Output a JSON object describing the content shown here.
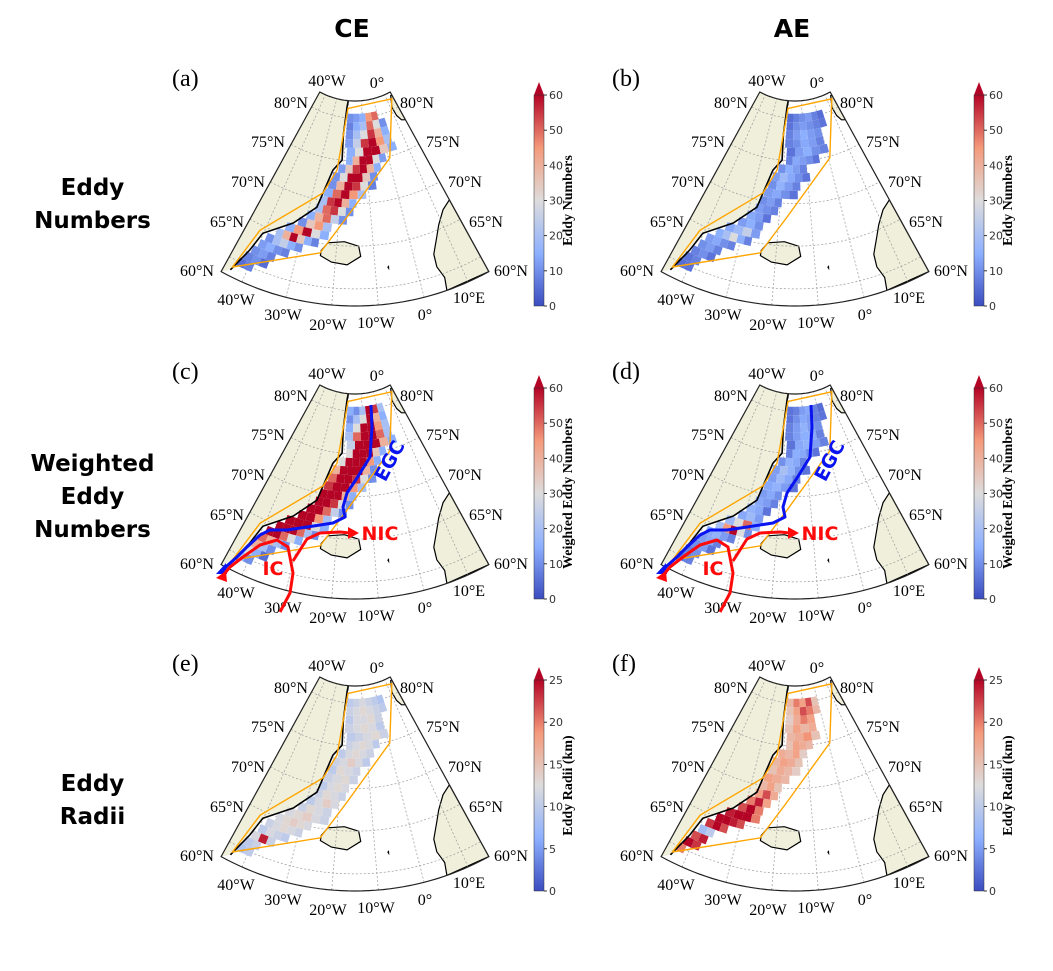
{
  "column_titles": [
    "CE",
    "AE"
  ],
  "row_labels": [
    [
      "Eddy",
      "Numbers"
    ],
    [
      "Weighted",
      "Eddy",
      "Numbers"
    ],
    [
      "Eddy",
      "Radii"
    ]
  ],
  "map": {
    "lon_labels_top": [
      "40°W",
      "0°"
    ],
    "lat_labels": [
      "80°N",
      "75°N",
      "70°N",
      "65°N",
      "60°N"
    ],
    "lon_labels_bottom": [
      "40°W",
      "30°W",
      "20°W",
      "10°W",
      "0°",
      "10°E"
    ],
    "colors": {
      "land": "#efefdc",
      "coast": "#000000",
      "grid": "#9a9a9a",
      "region_box": "#ffa500"
    }
  },
  "colormap": {
    "name": "coolwarm",
    "stops": [
      "#3b4cc0",
      "#8db0fe",
      "#dddcdc",
      "#f49a7b",
      "#b40426"
    ]
  },
  "grid": {
    "lats": [
      80,
      79,
      78,
      77,
      76,
      75,
      74,
      73,
      72,
      71,
      70,
      69,
      68,
      67,
      66,
      65,
      64,
      63,
      62,
      61,
      60
    ],
    "lon_start": [
      -20,
      -20,
      -20,
      -20,
      -19,
      -19,
      -22,
      -24,
      -25,
      -26,
      -27,
      -28,
      -30,
      -32,
      -35,
      -37,
      -39,
      -40,
      -41,
      -42,
      -43
    ],
    "lon_step": [
      4,
      4,
      4,
      4,
      4,
      3,
      3,
      3,
      3,
      3,
      2.5,
      2.5,
      2.5,
      2.5,
      2.5,
      2,
      2,
      2,
      2,
      2,
      2
    ]
  },
  "currents": {
    "labels": {
      "egc": "EGC",
      "nic": "NIC",
      "ic": "IC"
    },
    "colors": {
      "egc": "#0a14f0",
      "nic": "#ff0a0a",
      "ic": "#ff0a0a"
    }
  },
  "chart_data": [
    {
      "panel": "(a)",
      "type": "heatmap",
      "colorbar_label": "Eddy Numbers",
      "range": [
        0,
        60
      ],
      "ticks": [
        0,
        10,
        20,
        30,
        40,
        50,
        60
      ],
      "extend": "max",
      "currents": false,
      "rows": [
        [
          10,
          12,
          15,
          45,
          50,
          null
        ],
        [
          8,
          15,
          20,
          50,
          30,
          10
        ],
        [
          10,
          20,
          30,
          55,
          40,
          15
        ],
        [
          12,
          25,
          55,
          60,
          45,
          20
        ],
        [
          15,
          30,
          60,
          60,
          35,
          15
        ],
        [
          15,
          40,
          60,
          60,
          30,
          12
        ],
        [
          12,
          35,
          55,
          60,
          40,
          15
        ],
        [
          10,
          30,
          60,
          60,
          35,
          10
        ],
        [
          10,
          40,
          60,
          55,
          30,
          8
        ],
        [
          15,
          50,
          60,
          45,
          20,
          null
        ],
        [
          20,
          55,
          60,
          40,
          15,
          null
        ],
        [
          20,
          50,
          55,
          30,
          10,
          null
        ],
        [
          15,
          40,
          50,
          25,
          10,
          null
        ],
        [
          10,
          35,
          45,
          20,
          null,
          null
        ],
        [
          15,
          45,
          60,
          30,
          15,
          null
        ],
        [
          20,
          40,
          60,
          35,
          15,
          8
        ],
        [
          10,
          20,
          25,
          15,
          10,
          null
        ],
        [
          12,
          15,
          10,
          8,
          null,
          null
        ],
        [
          10,
          12,
          8,
          null,
          null,
          null
        ],
        [
          8,
          10,
          5,
          null,
          null,
          null
        ],
        [
          5,
          8,
          null,
          null,
          null,
          null
        ]
      ]
    },
    {
      "panel": "(b)",
      "type": "heatmap",
      "colorbar_label": "Eddy Numbers",
      "range": [
        0,
        60
      ],
      "ticks": [
        0,
        10,
        20,
        30,
        40,
        50,
        60
      ],
      "extend": "max",
      "currents": false,
      "rows": [
        [
          5,
          8,
          10,
          12,
          8,
          5
        ],
        [
          6,
          10,
          12,
          10,
          8,
          6
        ],
        [
          8,
          12,
          15,
          12,
          10,
          null
        ],
        [
          8,
          10,
          14,
          12,
          8,
          null
        ],
        [
          6,
          12,
          15,
          10,
          8,
          null
        ],
        [
          8,
          14,
          12,
          10,
          6,
          null
        ],
        [
          10,
          15,
          12,
          8,
          null,
          null
        ],
        [
          12,
          18,
          14,
          10,
          6,
          null
        ],
        [
          10,
          16,
          12,
          8,
          null,
          null
        ],
        [
          12,
          14,
          10,
          6,
          null,
          null
        ],
        [
          10,
          12,
          8,
          null,
          null,
          null
        ],
        [
          12,
          10,
          8,
          null,
          null,
          null
        ],
        [
          14,
          12,
          6,
          null,
          null,
          null
        ],
        [
          12,
          15,
          10,
          null,
          null,
          null
        ],
        [
          14,
          18,
          25,
          12,
          null,
          null
        ],
        [
          15,
          20,
          30,
          15,
          8,
          null
        ],
        [
          12,
          14,
          10,
          8,
          null,
          null
        ],
        [
          10,
          12,
          8,
          null,
          null,
          null
        ],
        [
          8,
          10,
          6,
          null,
          null,
          null
        ],
        [
          6,
          8,
          null,
          null,
          null,
          null
        ],
        [
          5,
          6,
          null,
          null,
          null,
          null
        ]
      ]
    },
    {
      "panel": "(c)",
      "type": "heatmap",
      "colorbar_label": "Weighted Eddy Numbers",
      "range": [
        0,
        60
      ],
      "ticks": [
        0,
        10,
        20,
        30,
        40,
        50,
        60
      ],
      "extend": "max",
      "currents": true,
      "rows": [
        [
          15,
          10,
          20,
          60,
          55,
          20
        ],
        [
          10,
          20,
          30,
          60,
          40,
          15
        ],
        [
          15,
          30,
          60,
          60,
          45,
          20
        ],
        [
          20,
          50,
          60,
          60,
          50,
          20
        ],
        [
          25,
          60,
          60,
          60,
          40,
          15
        ],
        [
          30,
          60,
          60,
          60,
          35,
          15
        ],
        [
          30,
          60,
          60,
          60,
          45,
          15
        ],
        [
          40,
          60,
          60,
          60,
          40,
          10
        ],
        [
          50,
          60,
          60,
          55,
          30,
          10
        ],
        [
          55,
          60,
          60,
          45,
          20,
          null
        ],
        [
          60,
          60,
          60,
          40,
          15,
          null
        ],
        [
          60,
          60,
          55,
          30,
          10,
          null
        ],
        [
          60,
          60,
          50,
          25,
          10,
          null
        ],
        [
          60,
          60,
          45,
          20,
          null,
          null
        ],
        [
          60,
          60,
          60,
          30,
          15,
          null
        ],
        [
          60,
          60,
          60,
          50,
          20,
          10
        ],
        [
          60,
          60,
          50,
          30,
          15,
          null
        ],
        [
          50,
          40,
          20,
          10,
          null,
          null
        ],
        [
          40,
          20,
          10,
          null,
          null,
          null
        ],
        [
          30,
          15,
          5,
          null,
          null,
          null
        ],
        [
          20,
          10,
          null,
          null,
          null,
          null
        ]
      ]
    },
    {
      "panel": "(d)",
      "type": "heatmap",
      "colorbar_label": "Weighted Eddy Numbers",
      "range": [
        0,
        60
      ],
      "ticks": [
        0,
        10,
        20,
        30,
        40,
        50,
        60
      ],
      "extend": "max",
      "currents": true,
      "rows": [
        [
          6,
          8,
          12,
          14,
          8,
          5
        ],
        [
          6,
          10,
          14,
          12,
          8,
          6
        ],
        [
          8,
          12,
          16,
          12,
          10,
          null
        ],
        [
          8,
          12,
          15,
          14,
          8,
          null
        ],
        [
          6,
          14,
          16,
          12,
          8,
          null
        ],
        [
          8,
          15,
          14,
          10,
          6,
          null
        ],
        [
          10,
          16,
          14,
          8,
          null,
          null
        ],
        [
          12,
          20,
          16,
          10,
          6,
          null
        ],
        [
          12,
          18,
          14,
          8,
          null,
          null
        ],
        [
          14,
          16,
          12,
          6,
          null,
          null
        ],
        [
          12,
          14,
          10,
          null,
          null,
          null
        ],
        [
          14,
          12,
          8,
          null,
          null,
          null
        ],
        [
          16,
          14,
          6,
          null,
          null,
          null
        ],
        [
          14,
          18,
          12,
          null,
          null,
          null
        ],
        [
          18,
          30,
          50,
          15,
          null,
          null
        ],
        [
          20,
          45,
          60,
          30,
          10,
          null
        ],
        [
          14,
          16,
          12,
          8,
          null,
          null
        ],
        [
          12,
          14,
          8,
          null,
          null,
          null
        ],
        [
          10,
          12,
          6,
          null,
          null,
          null
        ],
        [
          8,
          10,
          null,
          null,
          null,
          null
        ],
        [
          6,
          8,
          null,
          null,
          null,
          null
        ]
      ]
    },
    {
      "panel": "(e)",
      "type": "heatmap",
      "colorbar_label": "Eddy Radii (km)",
      "range": [
        0,
        25
      ],
      "ticks": [
        0,
        5,
        10,
        15,
        20,
        25
      ],
      "extend": "max",
      "currents": false,
      "rows": [
        [
          10,
          11,
          12,
          11,
          10,
          9
        ],
        [
          11,
          12,
          13,
          12,
          11,
          10
        ],
        [
          10,
          12,
          12,
          13,
          11,
          null
        ],
        [
          11,
          12,
          13,
          12,
          10,
          null
        ],
        [
          10,
          11,
          12,
          13,
          11,
          null
        ],
        [
          11,
          12,
          13,
          12,
          10,
          null
        ],
        [
          10,
          12,
          13,
          12,
          11,
          null
        ],
        [
          11,
          12,
          14,
          12,
          10,
          null
        ],
        [
          10,
          13,
          12,
          11,
          null,
          null
        ],
        [
          11,
          12,
          13,
          11,
          null,
          null
        ],
        [
          10,
          12,
          13,
          12,
          null,
          null
        ],
        [
          11,
          13,
          12,
          11,
          null,
          null
        ],
        [
          10,
          12,
          14,
          12,
          null,
          null
        ],
        [
          11,
          13,
          12,
          11,
          null,
          null
        ],
        [
          12,
          13,
          14,
          12,
          11,
          null
        ],
        [
          12,
          13,
          14,
          13,
          12,
          null
        ],
        [
          11,
          12,
          13,
          12,
          11,
          null
        ],
        [
          10,
          12,
          11,
          10,
          null,
          null
        ],
        [
          12,
          24,
          11,
          null,
          null,
          null
        ],
        [
          10,
          11,
          null,
          null,
          null,
          null
        ],
        [
          9,
          10,
          null,
          null,
          null,
          null
        ]
      ]
    },
    {
      "panel": "(f)",
      "type": "heatmap",
      "colorbar_label": "Eddy Radii (km)",
      "range": [
        0,
        25
      ],
      "ticks": [
        0,
        5,
        10,
        15,
        20,
        25
      ],
      "extend": "max",
      "currents": false,
      "rows": [
        [
          16,
          20,
          18,
          22,
          15,
          null
        ],
        [
          15,
          18,
          22,
          20,
          16,
          null
        ],
        [
          14,
          17,
          20,
          18,
          null,
          null
        ],
        [
          15,
          18,
          16,
          17,
          null,
          null
        ],
        [
          16,
          17,
          19,
          15,
          null,
          null
        ],
        [
          15,
          18,
          17,
          16,
          null,
          null
        ],
        [
          17,
          16,
          18,
          14,
          null,
          null
        ],
        [
          16,
          18,
          17,
          15,
          null,
          null
        ],
        [
          15,
          17,
          16,
          14,
          null,
          null
        ],
        [
          18,
          17,
          16,
          null,
          null,
          null
        ],
        [
          16,
          18,
          15,
          null,
          null,
          null
        ],
        [
          18,
          22,
          17,
          null,
          null,
          null
        ],
        [
          20,
          24,
          18,
          null,
          null,
          null
        ],
        [
          22,
          25,
          20,
          null,
          null,
          null
        ],
        [
          24,
          25,
          25,
          20,
          null,
          null
        ],
        [
          25,
          25,
          24,
          22,
          null,
          null
        ],
        [
          23,
          25,
          22,
          null,
          null,
          null
        ],
        [
          8,
          10,
          null,
          null,
          null,
          null
        ],
        [
          22,
          24,
          null,
          null,
          null,
          null
        ],
        [
          25,
          23,
          null,
          null,
          null,
          null
        ],
        [
          20,
          null,
          null,
          null,
          null,
          null
        ]
      ]
    }
  ]
}
